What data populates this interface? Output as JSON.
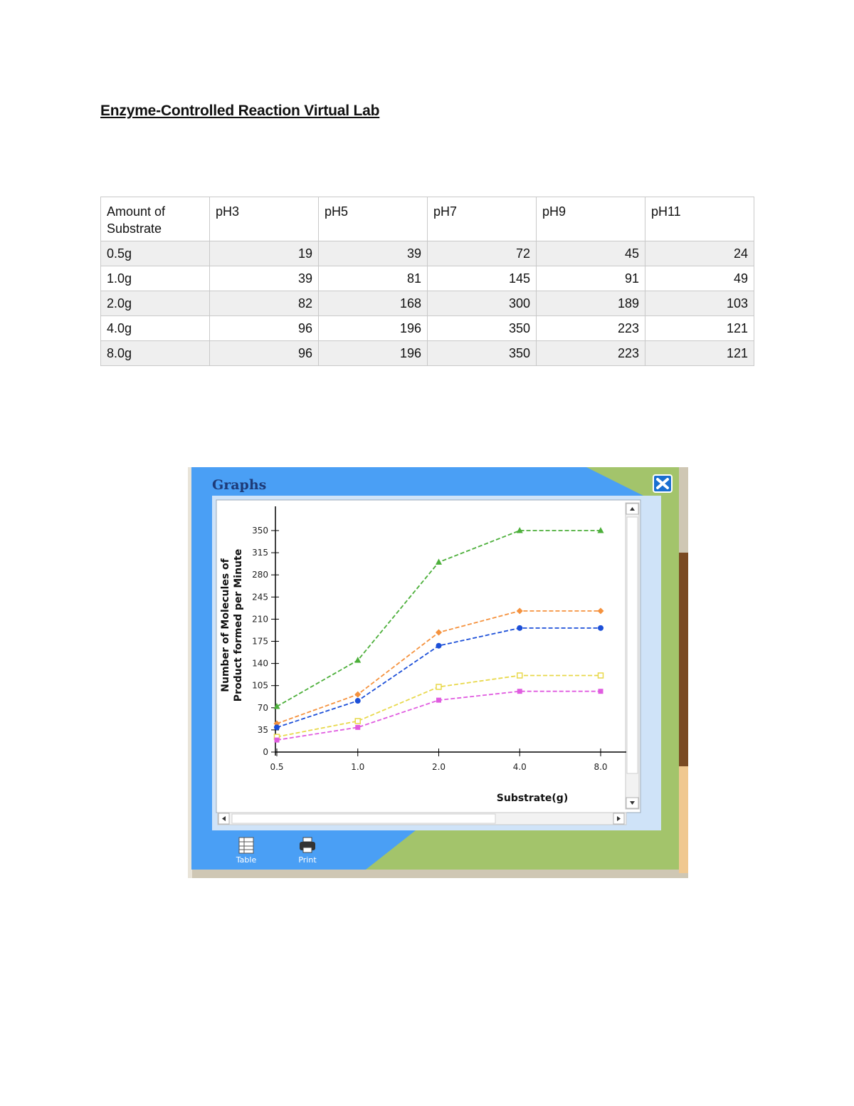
{
  "document": {
    "title": "Enzyme-Controlled Reaction Virtual Lab"
  },
  "table": {
    "headers": [
      "Amount of Substrate",
      "pH3",
      "pH5",
      "pH7",
      "pH9",
      "pH11"
    ],
    "rows": [
      {
        "label": "0.5g",
        "values": [
          19,
          39,
          72,
          45,
          24
        ]
      },
      {
        "label": "1.0g",
        "values": [
          39,
          81,
          145,
          91,
          49
        ]
      },
      {
        "label": "2.0g",
        "values": [
          82,
          168,
          300,
          189,
          103
        ]
      },
      {
        "label": "4.0g",
        "values": [
          96,
          196,
          350,
          223,
          121
        ]
      },
      {
        "label": "8.0g",
        "values": [
          96,
          196,
          350,
          223,
          121
        ]
      }
    ]
  },
  "graph_window": {
    "title": "Graphs",
    "buttons": {
      "table": "Table",
      "print": "Print"
    },
    "icons": {
      "close": "close-icon",
      "table": "table-icon",
      "print": "printer-icon"
    },
    "colors": {
      "window_blue": "#4a9ff5",
      "window_green": "#a3c46b"
    }
  },
  "chart_data": {
    "type": "line",
    "x": [
      0.5,
      1.0,
      2.0,
      4.0,
      8.0
    ],
    "x_tick_labels": [
      "0.5",
      "1.0",
      "2.0",
      "4.0",
      "8.0"
    ],
    "y_ticks": [
      0,
      35,
      70,
      105,
      140,
      175,
      210,
      245,
      280,
      315,
      350
    ],
    "y_tick_labels": [
      "0",
      "35",
      "70",
      "105",
      "140",
      "175",
      "210",
      "245",
      "280",
      "315",
      "350"
    ],
    "ylim": [
      0,
      350
    ],
    "xlabel": "Substrate(g)",
    "ylabel_line1": "Number of Molecules of",
    "ylabel_line2": "Product formed per Minute",
    "series": [
      {
        "values": [
          72,
          145,
          300,
          350,
          350
        ],
        "color": "#4caf3a",
        "marker": "triangle"
      },
      {
        "values": [
          45,
          91,
          189,
          223,
          223
        ],
        "color": "#f5923e",
        "marker": "diamond"
      },
      {
        "values": [
          39,
          81,
          168,
          196,
          196
        ],
        "color": "#1c4fd8",
        "marker": "circle"
      },
      {
        "values": [
          24,
          49,
          103,
          121,
          121
        ],
        "color": "#e8d84a",
        "marker": "square-open"
      },
      {
        "values": [
          19,
          39,
          82,
          96,
          96
        ],
        "color": "#e05ce0",
        "marker": "square"
      }
    ]
  }
}
